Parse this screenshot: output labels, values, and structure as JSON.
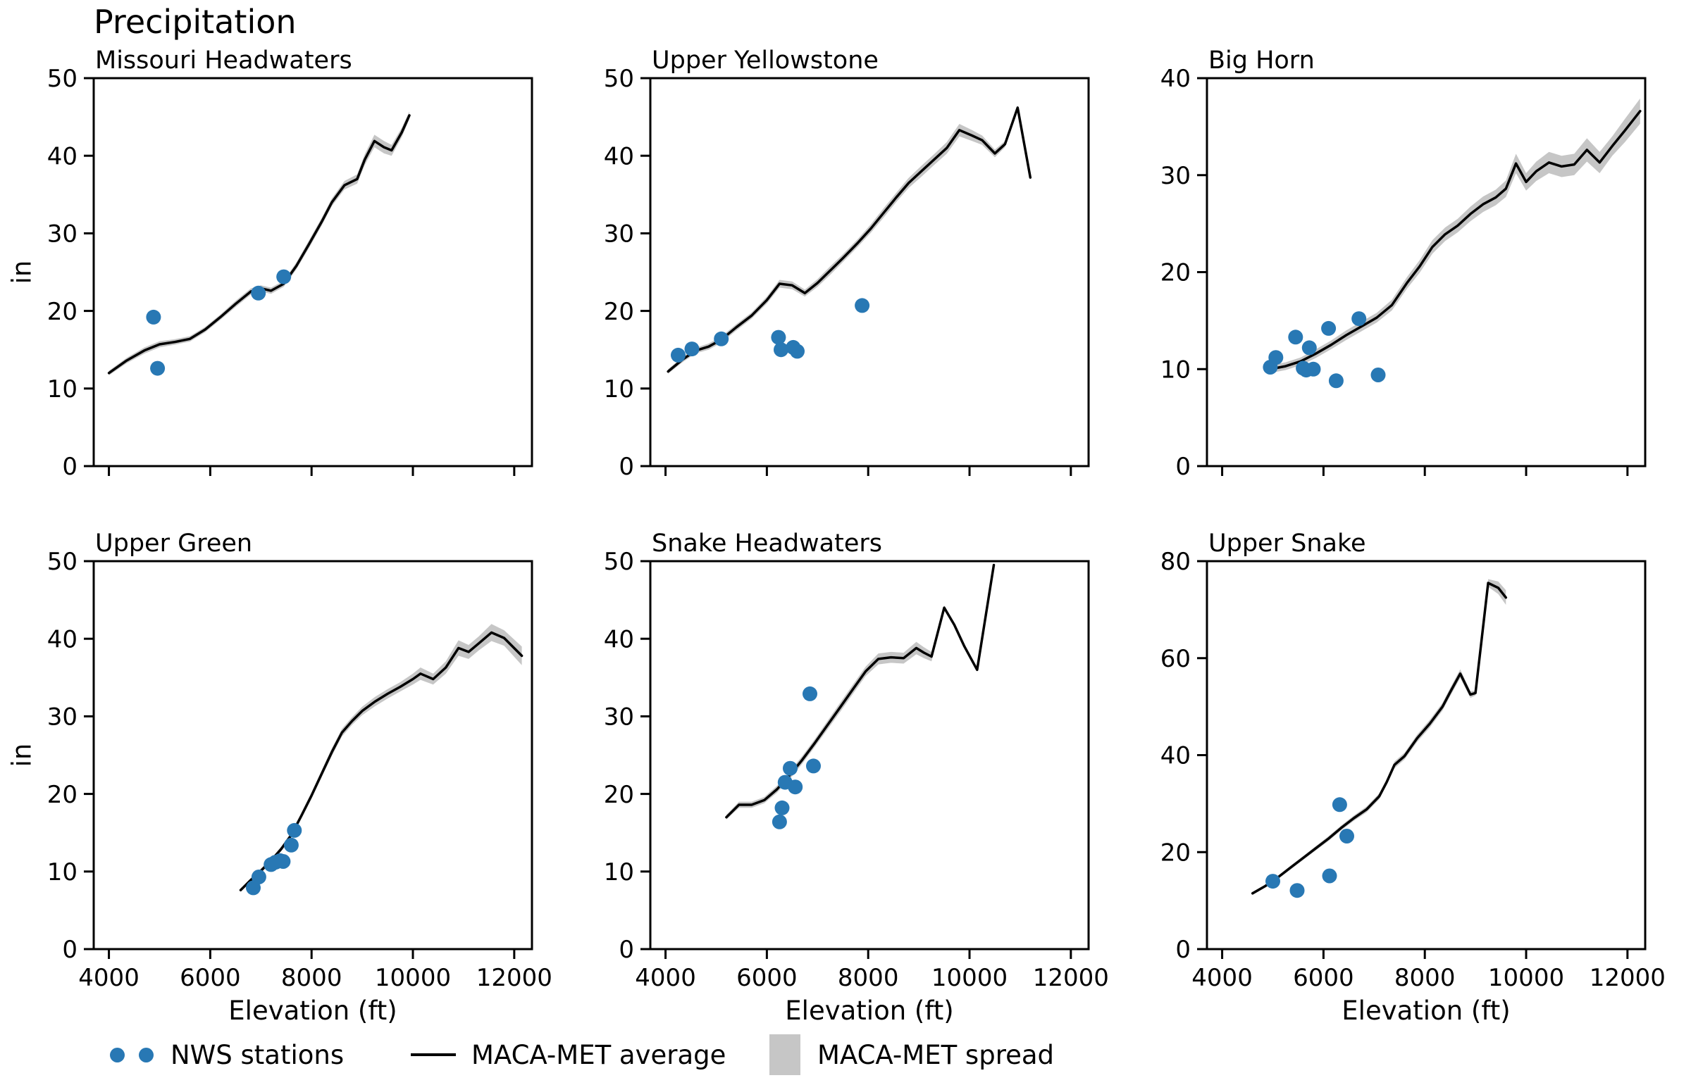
{
  "figure_title": "Precipitation",
  "xlabel": "Elevation (ft)",
  "ylabel": "in",
  "x_ticks": [
    4000,
    6000,
    8000,
    10000,
    12000
  ],
  "xlim": [
    3700,
    12350
  ],
  "colors": {
    "station_dot": "#2878b4",
    "average_line": "#000000",
    "spread_band": "#c6c6c6",
    "text": "#000000"
  },
  "legend": {
    "items": [
      {
        "swatch": "dots",
        "label": "NWS stations"
      },
      {
        "swatch": "line",
        "label": "MACA-MET average"
      },
      {
        "swatch": "band",
        "label": "MACA-MET spread"
      }
    ]
  },
  "chart_data": [
    {
      "type": "line+scatter",
      "title": "Missouri Headwaters",
      "ylim": [
        0,
        50
      ],
      "y_ticks": [
        0,
        10,
        20,
        30,
        40,
        50
      ],
      "series": {
        "nws_stations": {
          "x": [
            4880,
            4960,
            6950,
            7450
          ],
          "y": [
            19.2,
            12.6,
            22.3,
            24.4
          ]
        },
        "maca_met_average": {
          "x": [
            4000,
            4350,
            4700,
            5000,
            5300,
            5600,
            5900,
            6200,
            6500,
            6800,
            7000,
            7200,
            7450,
            7700,
            7950,
            8200,
            8400,
            8650,
            8900,
            9050,
            9240,
            9430,
            9580,
            9780,
            9930
          ],
          "y": [
            12.0,
            13.6,
            14.9,
            15.7,
            16.0,
            16.4,
            17.6,
            19.2,
            20.9,
            22.5,
            22.9,
            22.6,
            23.5,
            25.8,
            28.6,
            31.5,
            34.0,
            36.2,
            37.0,
            39.5,
            41.9,
            41.1,
            40.7,
            43.0,
            45.2
          ],
          "spread_half_width": [
            0.3,
            0.35,
            0.4,
            0.4,
            0.35,
            0.35,
            0.35,
            0.35,
            0.4,
            0.4,
            0.4,
            0.4,
            0.4,
            0.45,
            0.5,
            0.5,
            0.5,
            0.55,
            0.6,
            0.7,
            0.8,
            0.8,
            0.7,
            0.6,
            0.5
          ]
        }
      }
    },
    {
      "type": "line+scatter",
      "title": "Upper Yellowstone",
      "ylim": [
        0,
        50
      ],
      "y_ticks": [
        0,
        10,
        20,
        30,
        40,
        50
      ],
      "series": {
        "nws_stations": {
          "x": [
            4250,
            4520,
            5100,
            6230,
            6280,
            6520,
            6600,
            7880
          ],
          "y": [
            14.3,
            15.1,
            16.4,
            16.6,
            15.0,
            15.3,
            14.8,
            20.7
          ]
        },
        "maca_met_average": {
          "x": [
            4050,
            4350,
            4600,
            4850,
            5100,
            5400,
            5700,
            6000,
            6250,
            6500,
            6750,
            7000,
            7250,
            7500,
            7800,
            8050,
            8300,
            8550,
            8800,
            9050,
            9300,
            9550,
            9800,
            10050,
            10250,
            10500,
            10700,
            10950,
            11200
          ],
          "y": [
            12.2,
            13.8,
            14.9,
            15.4,
            16.3,
            17.9,
            19.4,
            21.4,
            23.5,
            23.3,
            22.3,
            23.6,
            25.2,
            26.8,
            28.8,
            30.6,
            32.6,
            34.6,
            36.5,
            38.0,
            39.5,
            41.0,
            43.3,
            42.6,
            42.0,
            40.3,
            41.5,
            46.2,
            37.2
          ],
          "spread_half_width": [
            0.3,
            0.35,
            0.35,
            0.4,
            0.4,
            0.4,
            0.4,
            0.45,
            0.5,
            0.5,
            0.45,
            0.5,
            0.55,
            0.5,
            0.5,
            0.55,
            0.6,
            0.6,
            0.65,
            0.7,
            0.7,
            0.75,
            0.8,
            0.7,
            0.6,
            0.5,
            0.4,
            0.25,
            0.15
          ]
        }
      }
    },
    {
      "type": "line+scatter",
      "title": "Big Horn",
      "ylim": [
        0,
        40
      ],
      "y_ticks": [
        0,
        10,
        20,
        30,
        40
      ],
      "series": {
        "nws_stations": {
          "x": [
            4950,
            5060,
            5450,
            5600,
            5660,
            5720,
            5800,
            6100,
            6250,
            6700,
            7080
          ],
          "y": [
            10.2,
            11.2,
            13.3,
            10.1,
            9.9,
            12.2,
            10.0,
            14.2,
            8.8,
            15.2,
            9.4
          ]
        },
        "maca_met_average": {
          "x": [
            4950,
            5250,
            5550,
            5850,
            6150,
            6450,
            6750,
            7050,
            7350,
            7650,
            7900,
            8150,
            8400,
            8650,
            8900,
            9150,
            9400,
            9600,
            9800,
            10000,
            10200,
            10450,
            10700,
            10950,
            11200,
            11450,
            11700,
            11950,
            12250
          ],
          "y": [
            10.0,
            10.3,
            10.8,
            11.6,
            12.5,
            13.5,
            14.4,
            15.3,
            16.6,
            18.9,
            20.6,
            22.6,
            23.9,
            24.8,
            26.0,
            27.0,
            27.7,
            28.6,
            31.2,
            29.3,
            30.4,
            31.3,
            30.9,
            31.1,
            32.6,
            31.3,
            33.0,
            34.6,
            36.6
          ],
          "spread_half_width": [
            0.4,
            0.4,
            0.4,
            0.45,
            0.45,
            0.5,
            0.5,
            0.5,
            0.55,
            0.6,
            0.65,
            0.7,
            0.7,
            0.7,
            0.75,
            0.8,
            0.8,
            0.85,
            1.0,
            0.9,
            1.0,
            1.1,
            1.1,
            1.1,
            1.2,
            1.1,
            1.0,
            1.2,
            1.3
          ]
        }
      }
    },
    {
      "type": "line+scatter",
      "title": "Upper Green",
      "ylim": [
        0,
        50
      ],
      "y_ticks": [
        0,
        10,
        20,
        30,
        40,
        50
      ],
      "series": {
        "nws_stations": {
          "x": [
            6850,
            6960,
            7200,
            7290,
            7380,
            7440,
            7600,
            7660
          ],
          "y": [
            7.9,
            9.3,
            10.9,
            11.2,
            11.4,
            11.3,
            13.4,
            15.3
          ]
        },
        "maca_met_average": {
          "x": [
            6600,
            6800,
            7000,
            7200,
            7400,
            7600,
            7800,
            8000,
            8200,
            8400,
            8600,
            8800,
            9000,
            9250,
            9500,
            9750,
            10000,
            10150,
            10400,
            10650,
            10900,
            11100,
            11300,
            11550,
            11800,
            12150
          ],
          "y": [
            7.6,
            8.9,
            10.1,
            11.4,
            12.9,
            14.7,
            17.2,
            19.8,
            22.6,
            25.4,
            27.9,
            29.4,
            30.7,
            31.9,
            32.9,
            33.8,
            34.8,
            35.5,
            34.8,
            36.3,
            38.8,
            38.3,
            39.4,
            40.8,
            40.1,
            37.8
          ],
          "spread_half_width": [
            0.2,
            0.25,
            0.3,
            0.3,
            0.3,
            0.35,
            0.4,
            0.4,
            0.45,
            0.5,
            0.5,
            0.5,
            0.55,
            0.6,
            0.6,
            0.6,
            0.7,
            0.8,
            0.7,
            0.8,
            1.0,
            0.9,
            0.9,
            1.1,
            1.0,
            1.2
          ]
        }
      }
    },
    {
      "type": "line+scatter",
      "title": "Snake Headwaters",
      "ylim": [
        0,
        50
      ],
      "y_ticks": [
        0,
        10,
        20,
        30,
        40,
        50
      ],
      "series": {
        "nws_stations": {
          "x": [
            6250,
            6300,
            6360,
            6460,
            6560,
            6850,
            6920
          ],
          "y": [
            16.4,
            18.2,
            21.5,
            23.3,
            20.9,
            32.9,
            23.6
          ]
        },
        "maca_met_average": {
          "x": [
            5200,
            5450,
            5700,
            5950,
            6200,
            6450,
            6700,
            6950,
            7200,
            7450,
            7700,
            7950,
            8200,
            8450,
            8700,
            8950,
            9100,
            9250,
            9500,
            9700,
            9900,
            10150,
            10480
          ],
          "y": [
            17.0,
            18.6,
            18.6,
            19.2,
            20.6,
            22.4,
            24.4,
            26.6,
            28.9,
            31.2,
            33.5,
            35.8,
            37.4,
            37.6,
            37.5,
            38.8,
            38.2,
            37.7,
            44.0,
            41.8,
            39.0,
            36.0,
            49.5
          ],
          "spread_half_width": [
            0.3,
            0.4,
            0.4,
            0.4,
            0.45,
            0.5,
            0.5,
            0.5,
            0.55,
            0.6,
            0.6,
            0.6,
            0.7,
            0.7,
            0.7,
            0.8,
            0.7,
            0.6,
            0.3,
            0.3,
            0.3,
            0.2,
            0.15
          ]
        }
      }
    },
    {
      "type": "line+scatter",
      "title": "Upper Snake",
      "ylim": [
        0,
        80
      ],
      "y_ticks": [
        0,
        20,
        40,
        60,
        80
      ],
      "series": {
        "nws_stations": {
          "x": [
            5000,
            5480,
            6120,
            6320,
            6460
          ],
          "y": [
            14.0,
            12.1,
            15.1,
            29.8,
            23.3
          ]
        },
        "maca_met_average": {
          "x": [
            4600,
            4850,
            5100,
            5350,
            5600,
            5850,
            6100,
            6350,
            6600,
            6850,
            7100,
            7250,
            7400,
            7600,
            7850,
            8100,
            8350,
            8500,
            8700,
            8900,
            9000,
            9250,
            9450,
            9600
          ],
          "y": [
            11.5,
            13.0,
            14.8,
            16.8,
            18.8,
            20.8,
            22.8,
            25.0,
            27.0,
            28.8,
            31.5,
            34.5,
            38.0,
            39.8,
            43.5,
            46.5,
            50.0,
            53.0,
            56.8,
            52.5,
            52.8,
            75.5,
            74.5,
            72.5
          ],
          "spread_half_width": [
            0.3,
            0.3,
            0.35,
            0.4,
            0.4,
            0.45,
            0.5,
            0.5,
            0.55,
            0.6,
            0.6,
            0.6,
            0.7,
            0.7,
            0.75,
            0.8,
            0.8,
            0.85,
            0.9,
            0.7,
            0.5,
            0.8,
            1.3,
            1.5
          ]
        }
      }
    }
  ]
}
